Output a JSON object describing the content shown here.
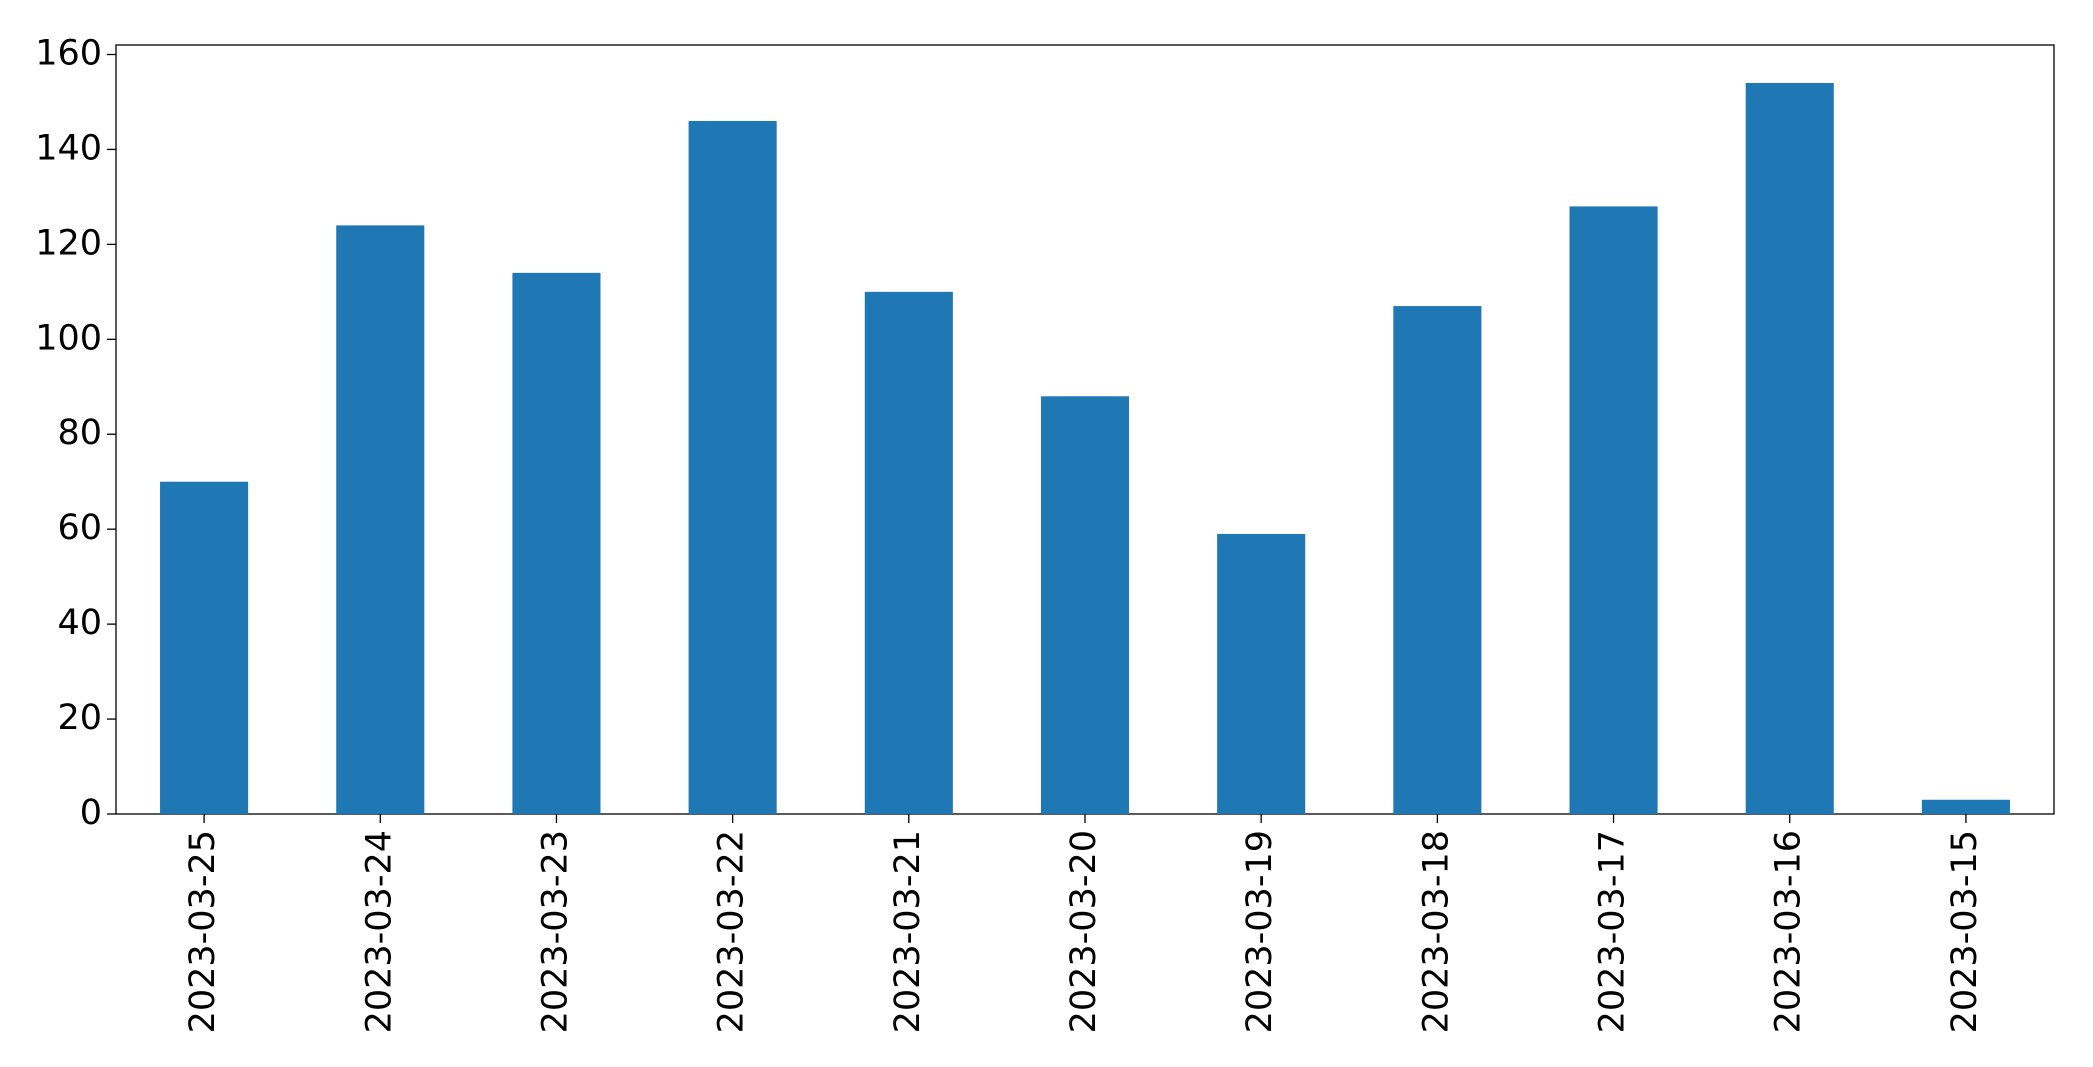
{
  "chart_data": {
    "type": "bar",
    "categories": [
      "2023-03-25",
      "2023-03-24",
      "2023-03-23",
      "2023-03-22",
      "2023-03-21",
      "2023-03-20",
      "2023-03-19",
      "2023-03-18",
      "2023-03-17",
      "2023-03-16",
      "2023-03-15"
    ],
    "values": [
      70,
      124,
      114,
      146,
      110,
      88,
      59,
      107,
      128,
      154,
      3
    ],
    "color": "#1f77b4",
    "ylim": [
      0,
      162
    ],
    "yticks": [
      0,
      20,
      40,
      60,
      80,
      100,
      120,
      140,
      160
    ],
    "grid": false
  }
}
